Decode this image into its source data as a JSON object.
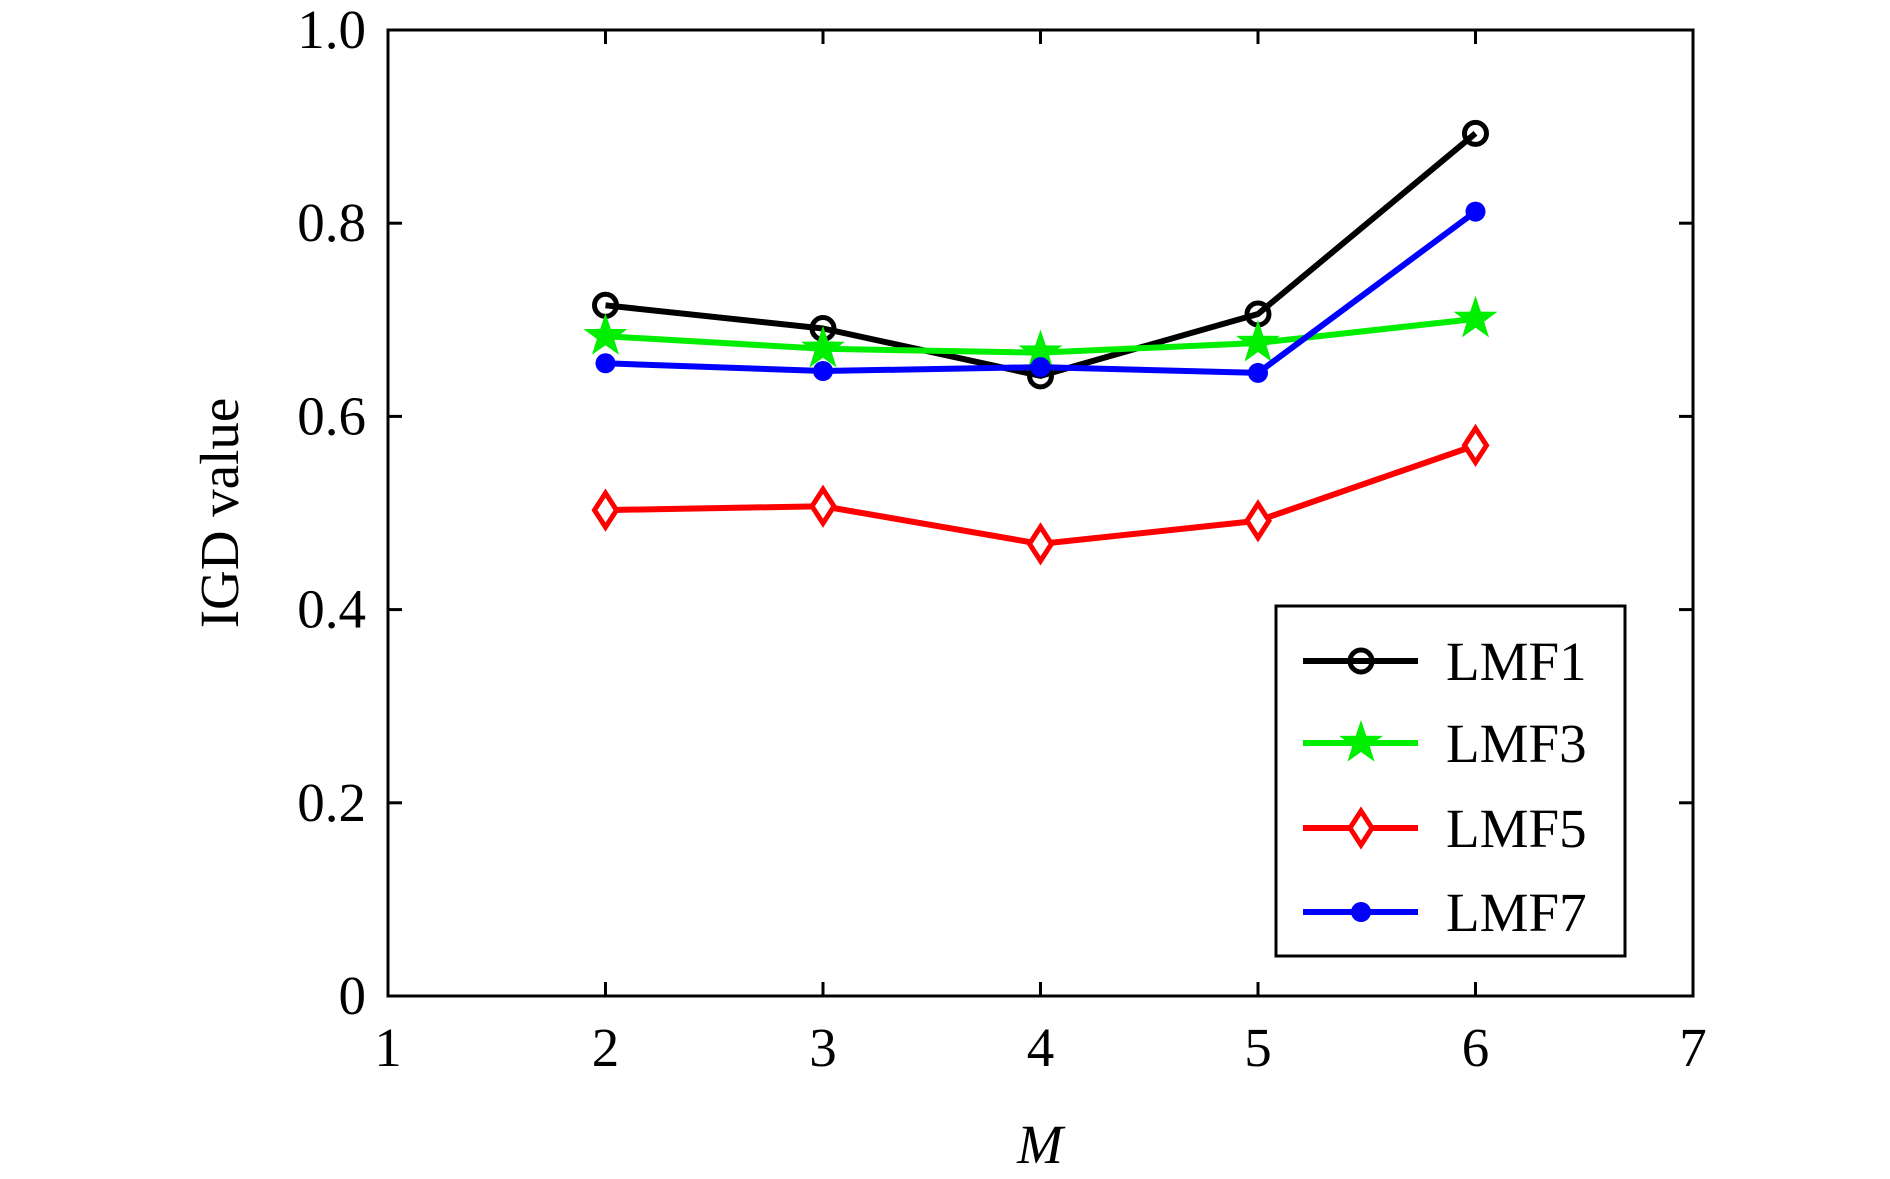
{
  "chart_data": {
    "type": "line",
    "title": "",
    "xlabel": "M",
    "ylabel": "IGD value",
    "xlim": [
      1,
      7
    ],
    "ylim": [
      0,
      1.0
    ],
    "xticks": [
      1,
      2,
      3,
      4,
      5,
      6,
      7
    ],
    "xtick_labels": [
      "1",
      "2",
      "3",
      "4",
      "5",
      "6",
      "7"
    ],
    "yticks": [
      0,
      0.2,
      0.4,
      0.6,
      0.8,
      1.0
    ],
    "ytick_labels": [
      "0",
      "0.2",
      "0.4",
      "0.6",
      "0.8",
      "1.0"
    ],
    "grid": false,
    "legend_position": "bottom-right",
    "x": [
      2,
      3,
      4,
      5,
      6
    ],
    "series": [
      {
        "name": "LMF1",
        "color": "#000000",
        "marker": "circle-open",
        "values": [
          0.715,
          0.691,
          0.642,
          0.706,
          0.893
        ]
      },
      {
        "name": "LMF3",
        "color": "#00ee00",
        "marker": "star",
        "values": [
          0.683,
          0.67,
          0.666,
          0.676,
          0.701
        ]
      },
      {
        "name": "LMF5",
        "color": "#ff0000",
        "marker": "diamond-open",
        "values": [
          0.503,
          0.507,
          0.468,
          0.492,
          0.57
        ]
      },
      {
        "name": "LMF7",
        "color": "#0000ff",
        "marker": "dot",
        "values": [
          0.655,
          0.647,
          0.651,
          0.645,
          0.812
        ]
      }
    ]
  }
}
